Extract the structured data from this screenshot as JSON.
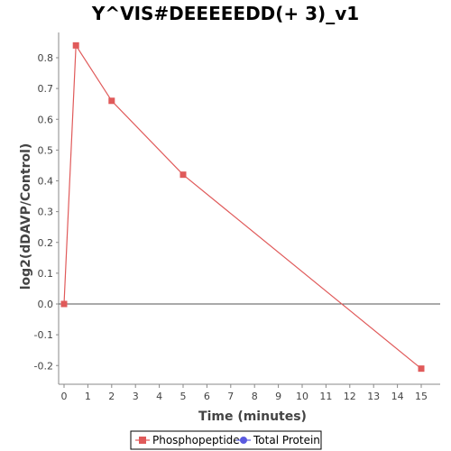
{
  "chart_data": {
    "type": "line",
    "title": "Y^VIS#DEEEEEDD(+ 3)_v1",
    "xlabel": "Time (minutes)",
    "ylabel": "log2(dDAVP/Control)",
    "xlim": [
      0,
      15.6
    ],
    "ylim": [
      -0.26,
      0.9
    ],
    "x_ticks": [
      0,
      1,
      2,
      3,
      4,
      5,
      6,
      7,
      8,
      9,
      10,
      11,
      12,
      13,
      14,
      15
    ],
    "y_ticks": [
      -0.2,
      -0.1,
      0.0,
      0.1,
      0.2,
      0.3,
      0.4,
      0.5,
      0.6,
      0.7,
      0.8
    ],
    "x_tick_labels": [
      "0",
      "1",
      "2",
      "3",
      "4",
      "5",
      "6",
      "7",
      "8",
      "9",
      "10",
      "11",
      "12",
      "13",
      "14",
      "15"
    ],
    "y_tick_labels": [
      "-0.2",
      "-0.1",
      "0.0",
      "0.1",
      "0.2",
      "0.3",
      "0.4",
      "0.5",
      "0.6",
      "0.7",
      "0.8"
    ],
    "zero_line": true,
    "grid": false,
    "legend_position": "bottom",
    "series": [
      {
        "name": "Phosphopeptide",
        "color": "#e05a5a",
        "marker": "square",
        "x": [
          0,
          0.5,
          2,
          5,
          15
        ],
        "y": [
          0.0,
          0.84,
          0.66,
          0.42,
          -0.21
        ]
      },
      {
        "name": "Total Protein",
        "color": "#5a5ae0",
        "marker": "circle",
        "x": [],
        "y": []
      }
    ]
  }
}
